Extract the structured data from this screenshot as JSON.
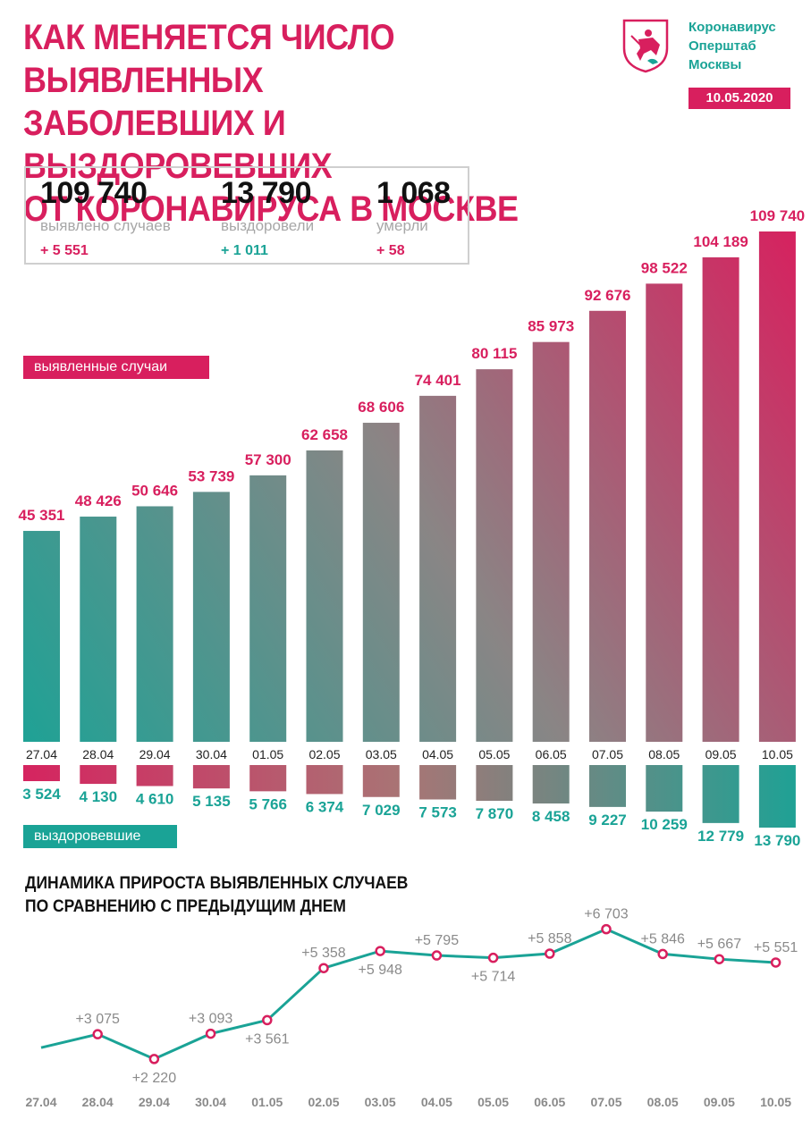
{
  "header": {
    "title_lines": [
      "КАК МЕНЯЕТСЯ ЧИСЛО ВЫЯВЛЕННЫХ",
      "ЗАБОЛЕВШИХ И ВЫЗДОРОВЕВШИХ",
      "ОТ КОРОНАВИРУСА В МОСКВЕ"
    ],
    "org_lines": [
      "Коронавирус",
      "Оперштаб",
      "Москвы"
    ],
    "date": "10.05.2020",
    "emblem_icon": "moscow-coat-of-arms-icon"
  },
  "summary": {
    "cases": {
      "value": "109 740",
      "label": "выявлено случаев",
      "delta": "+ 5 551"
    },
    "recovered": {
      "value": "13 790",
      "label": "выздоровели",
      "delta": "+ 1 011"
    },
    "deaths": {
      "value": "1 068",
      "label": "умерли",
      "delta": "+ 58"
    }
  },
  "labels": {
    "cases": "выявленные случаи",
    "recovered": "выздоровевшие"
  },
  "subtitle_lines": [
    "ДИНАМИКА ПРИРОСТА ВЫЯВЛЕННЫХ СЛУЧАЕВ",
    "ПО СРАВНЕНИЮ С ПРЕДЫДУЩИМ ДНЕМ"
  ],
  "colors": {
    "accent": "#d81f5e",
    "teal": "#1aa396",
    "dark": "#111111",
    "grey": "#a7a7a7"
  },
  "chart_data": [
    {
      "type": "bar",
      "title": "выявленные случаи",
      "categories": [
        "27.04",
        "28.04",
        "29.04",
        "30.04",
        "01.05",
        "02.05",
        "03.05",
        "04.05",
        "05.05",
        "06.05",
        "07.05",
        "08.05",
        "09.05",
        "10.05"
      ],
      "values": [
        45351,
        48426,
        50646,
        53739,
        57300,
        62658,
        68606,
        74401,
        80115,
        85973,
        92676,
        98522,
        104189,
        109740
      ],
      "value_labels": [
        "45 351",
        "48 426",
        "50 646",
        "53 739",
        "57 300",
        "62 658",
        "68 606",
        "74 401",
        "80 115",
        "85 973",
        "92 676",
        "98 522",
        "104 189",
        "109 740"
      ]
    },
    {
      "type": "bar",
      "title": "выздоровевшие",
      "categories": [
        "27.04",
        "28.04",
        "29.04",
        "30.04",
        "01.05",
        "02.05",
        "03.05",
        "04.05",
        "05.05",
        "06.05",
        "07.05",
        "08.05",
        "09.05",
        "10.05"
      ],
      "values": [
        3524,
        4130,
        4610,
        5135,
        5766,
        6374,
        7029,
        7573,
        7870,
        8458,
        9227,
        10259,
        12779,
        13790
      ],
      "value_labels": [
        "3 524",
        "4 130",
        "4 610",
        "5 135",
        "5 766",
        "6 374",
        "7 029",
        "7 573",
        "7 870",
        "8 458",
        "9 227",
        "10 259",
        "12 779",
        "13 790"
      ]
    },
    {
      "type": "line",
      "title": "ДИНАМИКА ПРИРОСТА ВЫЯВЛЕННЫХ СЛУЧАЕВ ПО СРАВНЕНИЮ С ПРЕДЫДУЩИМ ДНЕМ",
      "categories": [
        "27.04",
        "28.04",
        "29.04",
        "30.04",
        "01.05",
        "02.05",
        "03.05",
        "04.05",
        "05.05",
        "06.05",
        "07.05",
        "08.05",
        "09.05",
        "10.05"
      ],
      "values": [
        2612,
        3075,
        2220,
        3093,
        3561,
        5358,
        5948,
        5795,
        5714,
        5858,
        6703,
        5846,
        5667,
        5551
      ],
      "point_labels": [
        "",
        "+3 075",
        "+2 220",
        "+3 093",
        "+3 561",
        "+5 358",
        "+5 948",
        "+5 795",
        "+5 714",
        "+5 858",
        "+6 703",
        "+5 846",
        "+5 667",
        "+5 551"
      ],
      "label_side": [
        "",
        "above",
        "below",
        "above",
        "below",
        "above",
        "below",
        "above",
        "below",
        "above",
        "above",
        "above",
        "above",
        "above"
      ]
    }
  ]
}
